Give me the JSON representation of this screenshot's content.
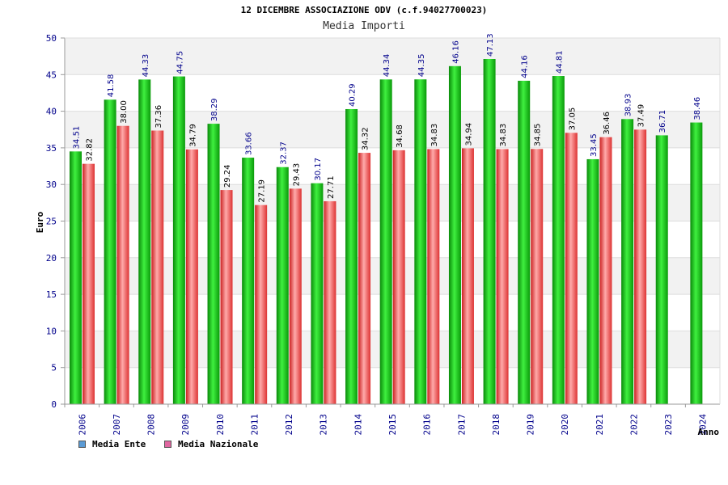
{
  "chart_data": {
    "type": "bar",
    "title": "12 DICEMBRE ASSOCIAZIONE ODV (c.f.94027700023)",
    "subtitle": "Media Importi",
    "xlabel": "Anno",
    "ylabel": "Euro",
    "ylim": [
      0,
      50
    ],
    "yticks": [
      "0",
      "5",
      "10",
      "15",
      "20",
      "25",
      "30",
      "35",
      "40",
      "45",
      "50"
    ],
    "categories": [
      "2006",
      "2007",
      "2008",
      "2009",
      "2010",
      "2011",
      "2012",
      "2013",
      "2014",
      "2015",
      "2016",
      "2017",
      "2018",
      "2019",
      "2020",
      "2021",
      "2022",
      "2023",
      "2024"
    ],
    "series": [
      {
        "name": "Media Ente",
        "color": "#22cc22",
        "values": [
          34.51,
          41.58,
          44.33,
          44.75,
          38.29,
          33.66,
          32.37,
          30.17,
          40.29,
          44.34,
          44.35,
          46.16,
          47.13,
          44.16,
          44.81,
          33.45,
          38.93,
          36.71,
          38.46
        ],
        "labels": [
          "34.51",
          "41.58",
          "44.33",
          "44.75",
          "38.29",
          "33.66",
          "32.37",
          "30.17",
          "40.29",
          "44.34",
          "44.35",
          "46.16",
          "47.13",
          "44.16",
          "44.81",
          "33.45",
          "38.93",
          "36.71",
          "38.46"
        ]
      },
      {
        "name": "Media Nazionale",
        "color": "#ee4444",
        "values": [
          32.82,
          38.0,
          37.36,
          34.79,
          29.24,
          27.19,
          29.43,
          27.71,
          34.32,
          34.68,
          34.83,
          34.94,
          34.83,
          34.85,
          37.05,
          36.46,
          37.49,
          null,
          null
        ],
        "labels": [
          "32.82",
          "38.00",
          "37.36",
          "34.79",
          "29.24",
          "27.19",
          "29.43",
          "27.71",
          "34.32",
          "34.68",
          "34.83",
          "34.94",
          "34.83",
          "34.85",
          "37.05",
          "36.46",
          "37.49",
          null,
          null
        ]
      }
    ],
    "legend": [
      {
        "label": "Media Ente",
        "color": "#5b9bd5"
      },
      {
        "label": "Media Nazionale",
        "color": "#e066a0"
      }
    ],
    "legend_position": "bottom-left",
    "grid": true
  }
}
